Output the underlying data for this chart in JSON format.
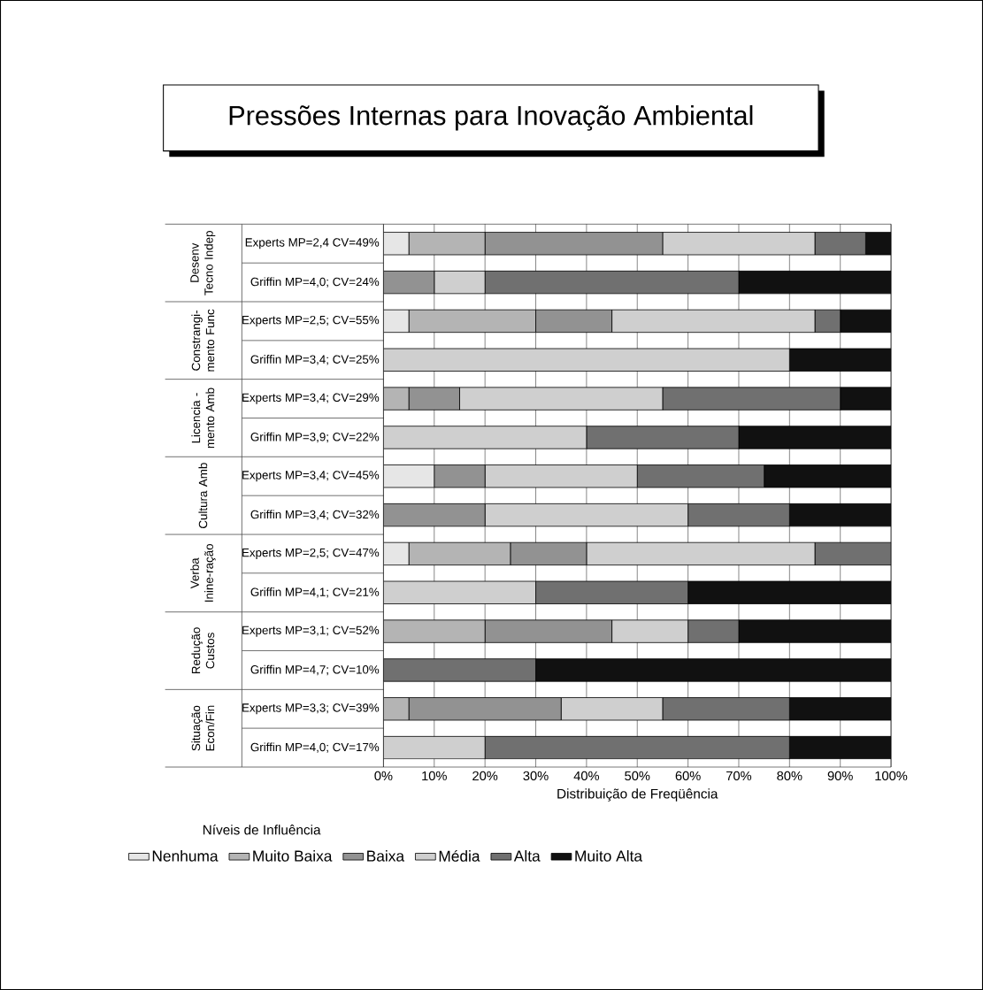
{
  "chart_data": {
    "type": "bar",
    "orientation": "horizontal",
    "stacked": true,
    "title": "Pressões Internas para Inovação Ambiental",
    "xlabel": "Distribuição de Freqüência",
    "legend_title": "Níveis de Influência",
    "categories": [
      "Experts MP=2,4 CV=49%",
      "Griffin MP=4,0; CV=24%",
      "Experts MP=2,5; CV=55%",
      "Griffin MP=3,4; CV=25%",
      "Experts MP=3,4; CV=29%",
      "Griffin MP=3,9; CV=22%",
      "Experts MP=3,4; CV=45%",
      "Griffin MP=3,4; CV=32%",
      "Experts MP=2,5; CV=47%",
      "Griffin MP=4,1; CV=21%",
      "Experts MP=3,1; CV=52%",
      "Griffin MP=4,7; CV=10%",
      "Experts MP=3,3; CV=39%",
      "Griffin MP=4,0; CV=17%"
    ],
    "annotations": [
      "Desenv Tecno Indep",
      "Constrangi-mento Func",
      "Licencia - mento Amb",
      "Cultura Amb",
      "Verba Inine-ração",
      "Redução Custos",
      "Situação Econ/Fin"
    ],
    "series": [
      {
        "name": "Nenhuma",
        "color": "#e6e6e6",
        "values": [
          5,
          0,
          5,
          0,
          0,
          0,
          10,
          0,
          5,
          0,
          0,
          0,
          0,
          0
        ]
      },
      {
        "name": "Muito Baixa",
        "color": "#b4b4b4",
        "values": [
          15,
          0,
          25,
          0,
          5,
          0,
          0,
          0,
          20,
          0,
          20,
          0,
          5,
          0
        ]
      },
      {
        "name": "Baixa",
        "color": "#929292",
        "values": [
          35,
          10,
          15,
          0,
          10,
          0,
          10,
          20,
          15,
          0,
          25,
          0,
          30,
          0
        ]
      },
      {
        "name": "Média",
        "color": "#cfcfcf",
        "values": [
          30,
          10,
          40,
          80,
          40,
          40,
          30,
          40,
          45,
          30,
          15,
          0,
          20,
          20
        ]
      },
      {
        "name": "Alta",
        "color": "#707070",
        "values": [
          10,
          50,
          5,
          0,
          35,
          30,
          25,
          20,
          15,
          30,
          10,
          30,
          25,
          60
        ]
      },
      {
        "name": "Muito Alta",
        "color": "#111111",
        "values": [
          5,
          30,
          10,
          20,
          10,
          30,
          25,
          20,
          0,
          40,
          30,
          70,
          20,
          20
        ]
      }
    ],
    "xlim": [
      0,
      100
    ],
    "xticks": [
      {
        "value": 0,
        "label": "0%"
      },
      {
        "value": 10,
        "label": "10%"
      },
      {
        "value": 20,
        "label": "20%"
      },
      {
        "value": 30,
        "label": "30%"
      },
      {
        "value": 40,
        "label": "40%"
      },
      {
        "value": 50,
        "label": "50%"
      },
      {
        "value": 60,
        "label": "60%"
      },
      {
        "value": 70,
        "label": "70%"
      },
      {
        "value": 80,
        "label": "80%"
      },
      {
        "value": 90,
        "label": "90%"
      },
      {
        "value": 100,
        "label": "100%"
      }
    ],
    "grid": "x",
    "legend": "bottom"
  }
}
